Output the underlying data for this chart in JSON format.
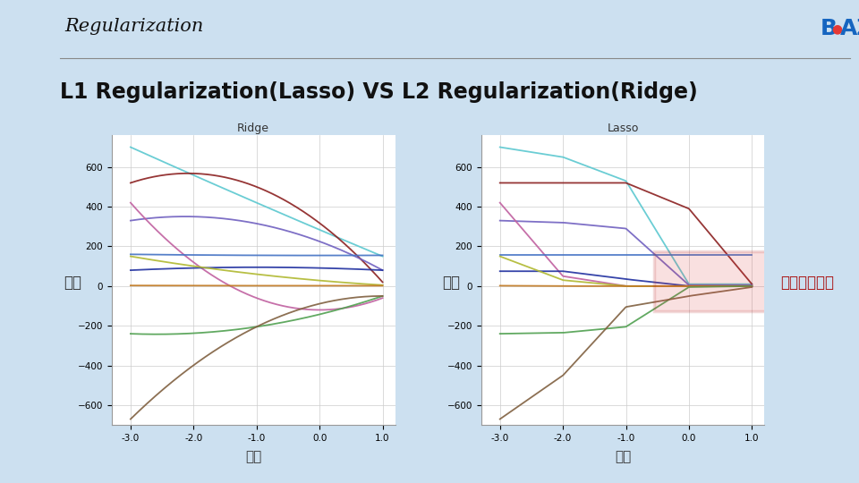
{
  "title": "L1 Regularization(Lasso) VS L2 Regularization(Ridge)",
  "header": "Regularization",
  "bg_color": "#cce0f0",
  "plot_bg": "#ffffff",
  "ridge_title": "Ridge",
  "lasso_title": "Lasso",
  "annotation_text": "변수선택효라",
  "x_ticks": [
    -3.0,
    -2.0,
    -1.0,
    0.0,
    1.0
  ],
  "colors": [
    "#5bc8d0",
    "#8b2020",
    "#7060c0",
    "#c060a0",
    "#4472c4",
    "#2030a0",
    "#b0b830",
    "#c07820",
    "#50a050",
    "#806040"
  ]
}
